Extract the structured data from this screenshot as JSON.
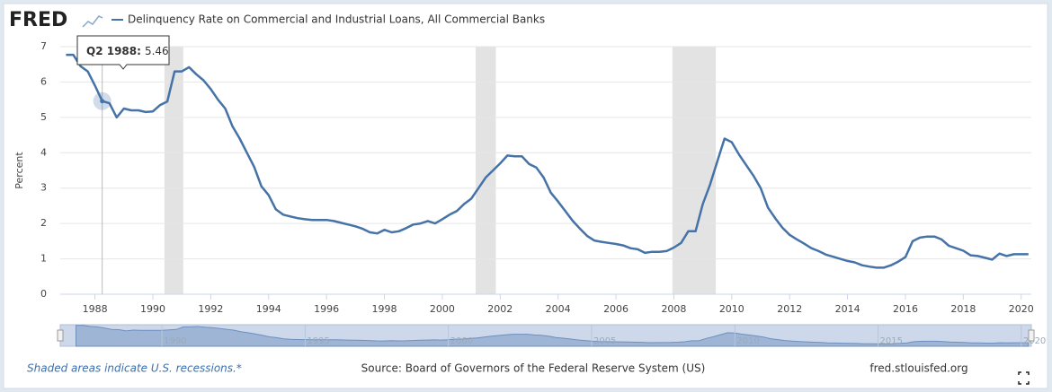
{
  "chart_data": {
    "type": "line",
    "logo": "FRED",
    "title": "Delinquency Rate on Commercial and Industrial Loans, All Commercial Banks",
    "y_label": "Percent",
    "note": "Shaded areas indicate U.S. recessions.*",
    "source": "Source: Board of Governors of the Federal Reserve System (US)",
    "site": "fred.stlouisfed.org",
    "tooltip": {
      "label": "Q2 1988:",
      "index": 5
    },
    "x": [
      1987,
      1987.25,
      1987.5,
      1987.75,
      1988,
      1988.25,
      1988.5,
      1988.75,
      1989,
      1989.25,
      1989.5,
      1989.75,
      1990,
      1990.25,
      1990.5,
      1990.75,
      1991,
      1991.25,
      1991.5,
      1991.75,
      1992,
      1992.25,
      1992.5,
      1992.75,
      1993,
      1993.25,
      1993.5,
      1993.75,
      1994,
      1994.25,
      1994.5,
      1994.75,
      1995,
      1995.25,
      1995.5,
      1995.75,
      1996,
      1996.25,
      1996.5,
      1996.75,
      1997,
      1997.25,
      1997.5,
      1997.75,
      1998,
      1998.25,
      1998.5,
      1998.75,
      1999,
      1999.25,
      1999.5,
      1999.75,
      2000,
      2000.25,
      2000.5,
      2000.75,
      2001,
      2001.25,
      2001.5,
      2001.75,
      2002,
      2002.25,
      2002.5,
      2002.75,
      2003,
      2003.25,
      2003.5,
      2003.75,
      2004,
      2004.25,
      2004.5,
      2004.75,
      2005,
      2005.25,
      2005.5,
      2005.75,
      2006,
      2006.25,
      2006.5,
      2006.75,
      2007,
      2007.25,
      2007.5,
      2007.75,
      2008,
      2008.25,
      2008.5,
      2008.75,
      2009,
      2009.25,
      2009.5,
      2009.75,
      2010,
      2010.25,
      2010.5,
      2010.75,
      2011,
      2011.25,
      2011.5,
      2011.75,
      2012,
      2012.25,
      2012.5,
      2012.75,
      2013,
      2013.25,
      2013.5,
      2013.75,
      2014,
      2014.25,
      2014.5,
      2014.75,
      2015,
      2015.25,
      2015.5,
      2015.75,
      2016,
      2016.25,
      2016.5,
      2016.75,
      2017,
      2017.25,
      2017.5,
      2017.75,
      2018,
      2018.25,
      2018.5,
      2018.75,
      2019,
      2019.25,
      2019.5,
      2019.75,
      2020,
      2020.25
    ],
    "series": [
      {
        "name": "Delinquency Rate on Commercial and Industrial Loans, All Commercial Banks",
        "color": "#4572a7",
        "values": [
          6.77,
          6.77,
          6.45,
          6.3,
          5.9,
          5.46,
          5.4,
          5.0,
          5.25,
          5.2,
          5.2,
          5.15,
          5.17,
          5.35,
          5.45,
          6.3,
          6.3,
          6.42,
          6.22,
          6.05,
          5.8,
          5.5,
          5.25,
          4.75,
          4.4,
          4.0,
          3.6,
          3.05,
          2.8,
          2.4,
          2.25,
          2.2,
          2.15,
          2.12,
          2.1,
          2.1,
          2.1,
          2.07,
          2.02,
          1.97,
          1.92,
          1.85,
          1.75,
          1.72,
          1.82,
          1.75,
          1.78,
          1.87,
          1.97,
          2.0,
          2.07,
          2.0,
          2.12,
          2.25,
          2.35,
          2.55,
          2.7,
          3.0,
          3.3,
          3.5,
          3.7,
          3.92,
          3.9,
          3.9,
          3.68,
          3.58,
          3.3,
          2.87,
          2.62,
          2.35,
          2.08,
          1.86,
          1.65,
          1.52,
          1.48,
          1.45,
          1.42,
          1.38,
          1.3,
          1.27,
          1.17,
          1.2,
          1.2,
          1.22,
          1.32,
          1.45,
          1.78,
          1.78,
          2.55,
          3.1,
          3.75,
          4.4,
          4.3,
          3.95,
          3.65,
          3.35,
          3.0,
          2.45,
          2.15,
          1.88,
          1.68,
          1.55,
          1.43,
          1.3,
          1.22,
          1.12,
          1.06,
          1.0,
          0.94,
          0.9,
          0.82,
          0.78,
          0.75,
          0.75,
          0.82,
          0.92,
          1.05,
          1.5,
          1.6,
          1.63,
          1.63,
          1.55,
          1.37,
          1.3,
          1.23,
          1.1,
          1.08,
          1.03,
          0.98,
          1.15,
          1.08,
          1.13,
          1.13,
          1.13
        ]
      }
    ],
    "recessions": [
      [
        1990.4,
        1991.05
      ],
      [
        2001.15,
        2001.85
      ],
      [
        2007.95,
        2009.45
      ]
    ],
    "xlim": [
      1986.8,
      2020.35
    ],
    "xticks": [
      1988,
      1990,
      1992,
      1994,
      1996,
      1998,
      2000,
      2002,
      2004,
      2006,
      2008,
      2010,
      2012,
      2014,
      2016,
      2018,
      2020
    ],
    "ylim": [
      0,
      7
    ],
    "yticks": [
      0,
      1,
      2,
      3,
      4,
      5,
      6,
      7
    ],
    "grid": true,
    "nav_xlim": [
      1986.45,
      2020.35
    ],
    "nav_xticks": [
      1990,
      1995,
      2000,
      2005,
      2010,
      2015,
      2020
    ]
  }
}
